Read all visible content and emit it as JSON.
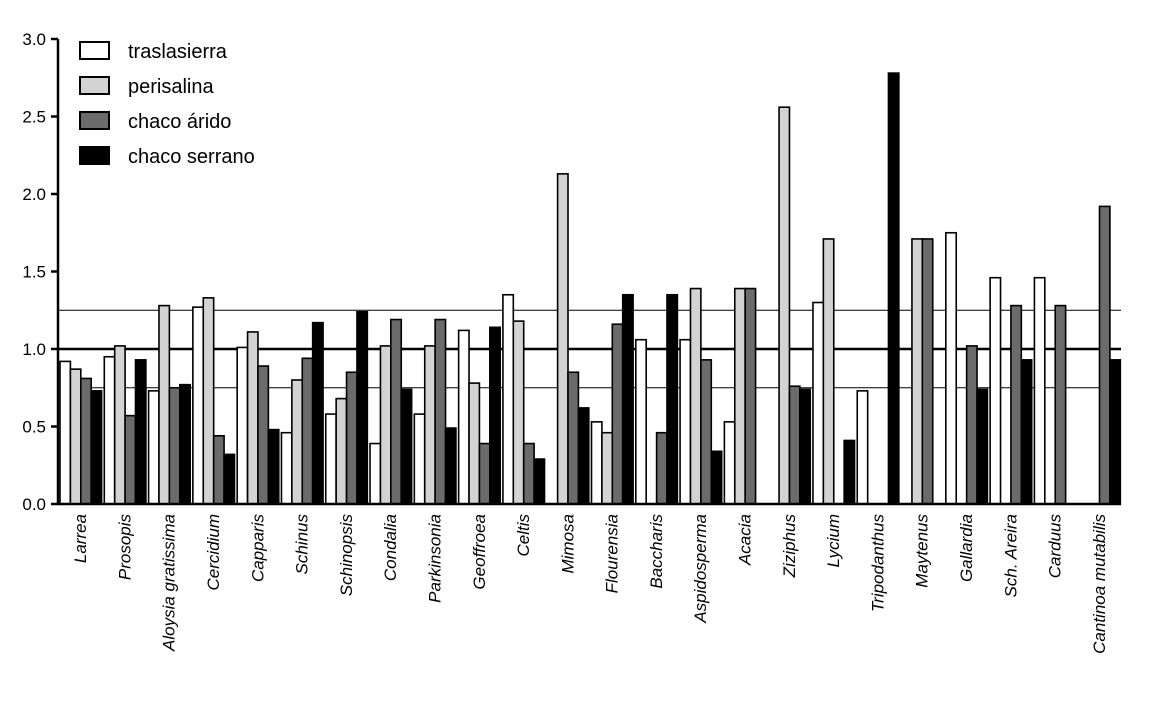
{
  "chart_data": {
    "type": "bar",
    "title": "",
    "xlabel": "",
    "ylabel": "",
    "ylim": [
      0,
      3.0
    ],
    "yticks": [
      "0.0",
      "0.5",
      "1.0",
      "1.5",
      "2.0",
      "2.5",
      "3.0"
    ],
    "reference_lines": [
      1.0,
      1.25,
      0.75
    ],
    "legend_position": "top-left",
    "grid": false,
    "categories": [
      "Larrea",
      "Prosopis",
      "Aloysia gratissima",
      "Cercidium",
      "Capparis",
      "Schinus",
      "Schinopsis",
      "Condalia",
      "Parkinsonia",
      "Geoffroea",
      "Celtis",
      "Mimosa",
      "Flourensia",
      "Baccharis",
      "Aspidosperma",
      "Acacia",
      "Ziziphus",
      "Lycium",
      "Tripodanthus",
      "Maytenus",
      "Gallardia",
      "Sch. Areira",
      "Carduus",
      "Cantinoa mutabilis"
    ],
    "series": [
      {
        "name": "traslasierra",
        "color": "#ffffff",
        "values": [
          0.92,
          0.95,
          0.73,
          1.27,
          1.01,
          0.46,
          0.58,
          0.39,
          0.58,
          1.12,
          1.35,
          null,
          0.53,
          1.06,
          1.06,
          0.53,
          null,
          1.3,
          0.73,
          null,
          1.75,
          1.46,
          1.46,
          null
        ]
      },
      {
        "name": "perisalina",
        "color": "#d3d3d3",
        "values": [
          0.87,
          1.02,
          1.28,
          1.33,
          1.11,
          0.8,
          0.68,
          1.02,
          1.02,
          0.78,
          1.18,
          2.13,
          0.46,
          null,
          1.39,
          1.39,
          2.56,
          1.71,
          null,
          1.71,
          null,
          null,
          null,
          null
        ]
      },
      {
        "name": "chaco árido",
        "color": "#6b6b6b",
        "values": [
          0.81,
          0.57,
          0.75,
          0.44,
          0.89,
          0.94,
          0.85,
          1.19,
          1.19,
          0.39,
          0.39,
          0.85,
          1.16,
          0.46,
          0.93,
          1.39,
          0.76,
          null,
          null,
          1.71,
          1.02,
          1.28,
          1.28,
          1.92
        ]
      },
      {
        "name": "chaco serrano",
        "color": "#000000",
        "values": [
          0.73,
          0.93,
          0.77,
          0.32,
          0.48,
          1.17,
          1.24,
          0.74,
          0.49,
          1.14,
          0.29,
          0.62,
          1.35,
          1.35,
          0.34,
          null,
          0.74,
          0.41,
          2.78,
          null,
          0.74,
          0.93,
          null,
          0.93
        ]
      }
    ]
  }
}
